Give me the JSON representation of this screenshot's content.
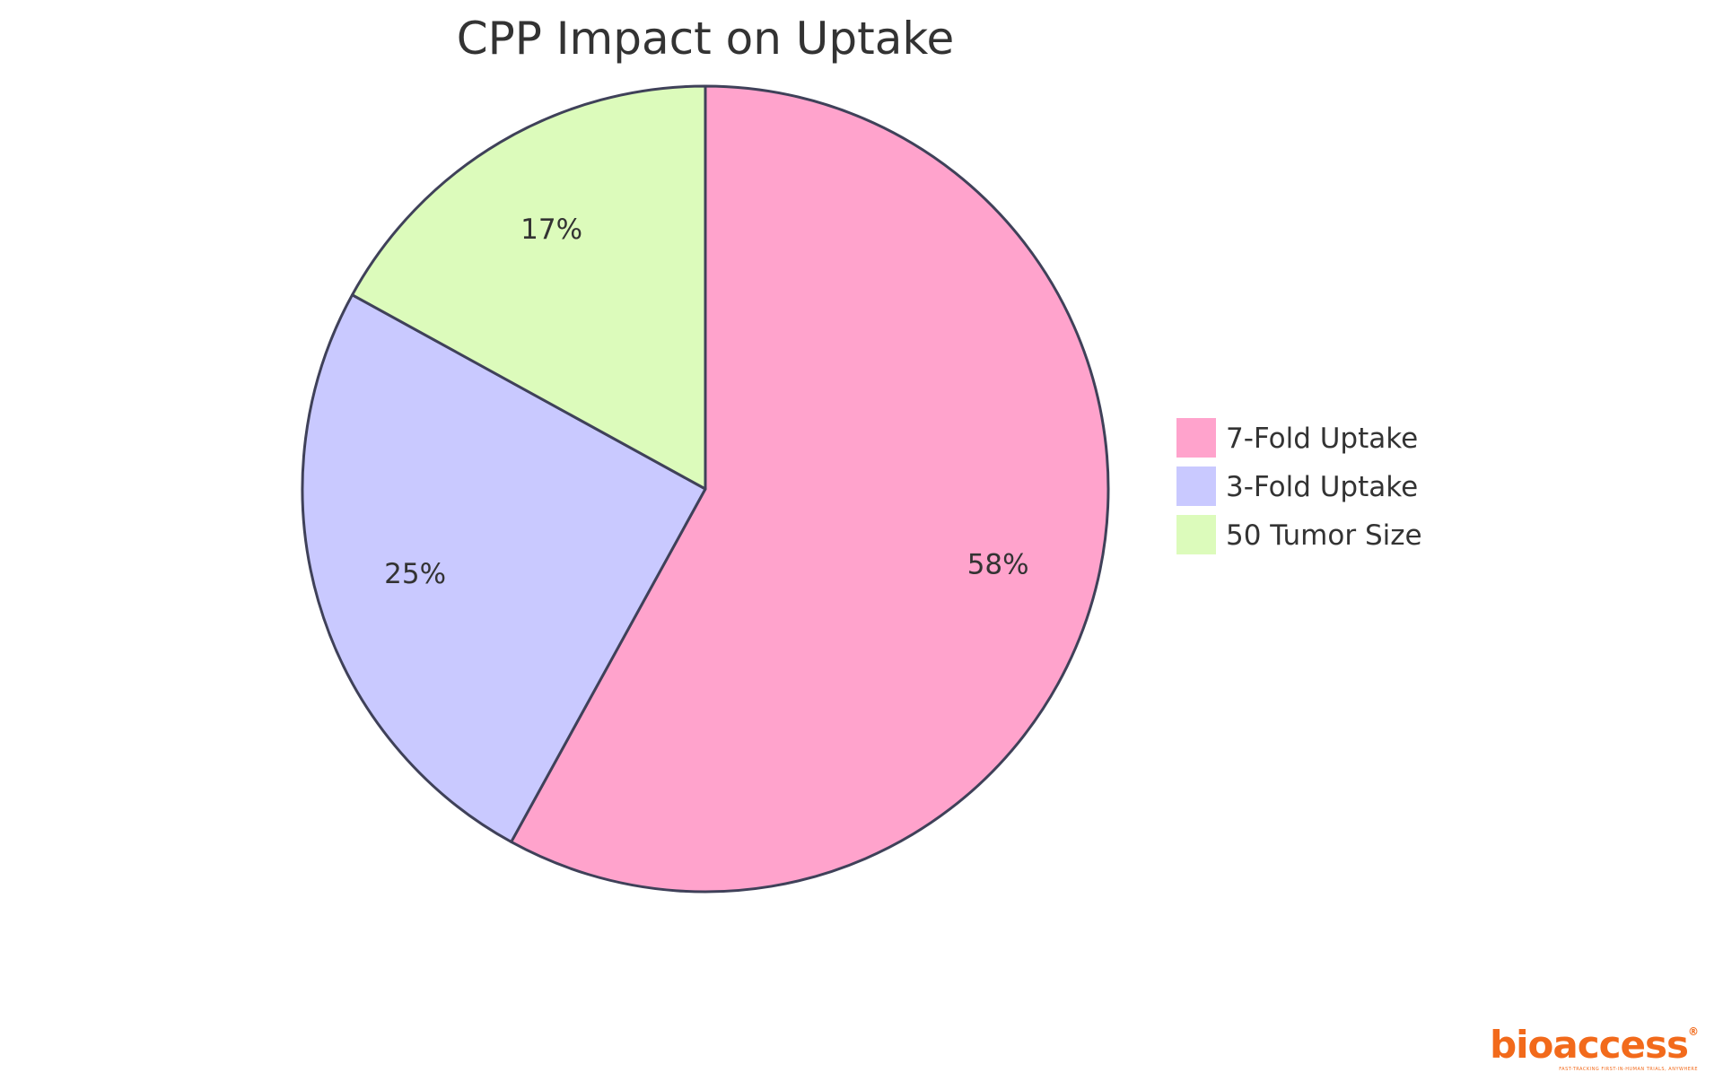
{
  "chart_data": {
    "type": "pie",
    "title": "CPP Impact on Uptake",
    "categories": [
      "7-Fold Uptake",
      "3-Fold Uptake",
      "50 Tumor Size"
    ],
    "values": [
      58,
      25,
      17
    ],
    "labels": [
      "58%",
      "25%",
      "17%"
    ],
    "colors": [
      "#ffa3cc",
      "#c9c9ff",
      "#dcfbbb"
    ],
    "legend": "right"
  },
  "logo": {
    "text": "bioaccess",
    "tagline": "FAST-TRACKING FIRST-IN-HUMAN TRIALS, ANYWHERE"
  }
}
